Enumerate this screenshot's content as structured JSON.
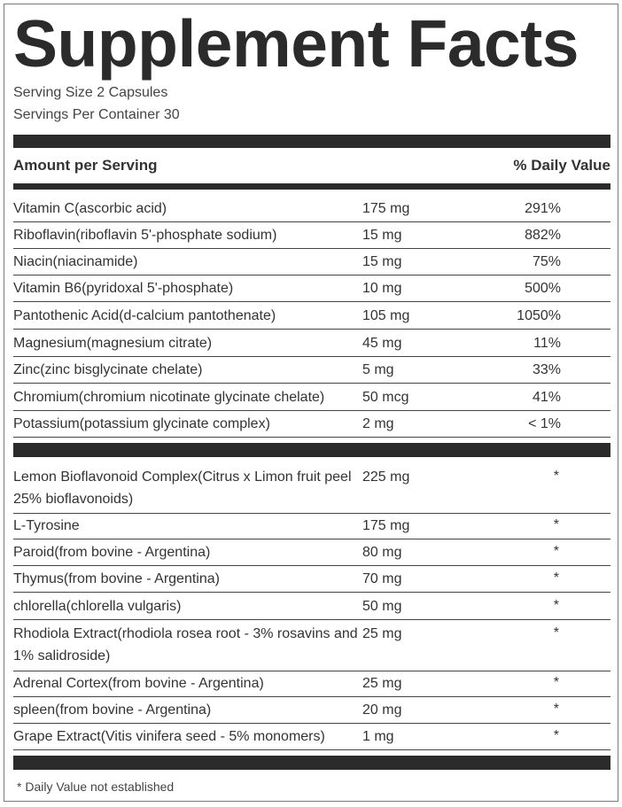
{
  "title": "Supplement Facts",
  "serving_size": "Serving Size 2 Capsules",
  "servings_per_container": "Servings Per Container 30",
  "header": {
    "amount": "Amount per Serving",
    "daily_value": "% Daily Value"
  },
  "vitamins": [
    {
      "name": "Vitamin C(ascorbic acid)",
      "amount": "175 mg",
      "dv": "291%"
    },
    {
      "name": "Riboflavin(riboflavin 5'-phosphate sodium)",
      "amount": "15 mg",
      "dv": "882%"
    },
    {
      "name": "Niacin(niacinamide)",
      "amount": "15 mg",
      "dv": "75%"
    },
    {
      "name": "Vitamin B6(pyridoxal 5'-phosphate)",
      "amount": "10 mg",
      "dv": "500%"
    },
    {
      "name": "Pantothenic Acid(d-calcium pantothenate)",
      "amount": "105 mg",
      "dv": "1050%"
    },
    {
      "name": "Magnesium(magnesium citrate)",
      "amount": "45 mg",
      "dv": "11%"
    },
    {
      "name": "Zinc(zinc bisglycinate chelate)",
      "amount": "5 mg",
      "dv": "33%"
    },
    {
      "name": "Chromium(chromium nicotinate glycinate chelate)",
      "amount": "50 mcg",
      "dv": "41%"
    },
    {
      "name": "Potassium(potassium glycinate complex)",
      "amount": "2 mg",
      "dv": "< 1%"
    }
  ],
  "others": [
    {
      "name": "Lemon Bioflavonoid Complex(Citrus x Limon fruit peel 25% bioflavonoids)",
      "amount": "225 mg",
      "dv": "*"
    },
    {
      "name": "L-Tyrosine",
      "amount": "175 mg",
      "dv": "*"
    },
    {
      "name": "Paroid(from bovine - Argentina)",
      "amount": "80 mg",
      "dv": "*"
    },
    {
      "name": "Thymus(from bovine - Argentina)",
      "amount": "70 mg",
      "dv": "*"
    },
    {
      "name": "chlorella(chlorella vulgaris)",
      "amount": "50 mg",
      "dv": "*"
    },
    {
      "name": "Rhodiola Extract(rhodiola rosea root - 3% rosavins and 1% salidroside)",
      "amount": "25 mg",
      "dv": "*"
    },
    {
      "name": "Adrenal Cortex(from bovine - Argentina)",
      "amount": "25 mg",
      "dv": "*"
    },
    {
      "name": "spleen(from bovine - Argentina)",
      "amount": "20 mg",
      "dv": "*"
    },
    {
      "name": "Grape Extract(Vitis vinifera seed - 5% monomers)",
      "amount": "1 mg",
      "dv": "*"
    }
  ],
  "footnote": "* Daily Value not established"
}
